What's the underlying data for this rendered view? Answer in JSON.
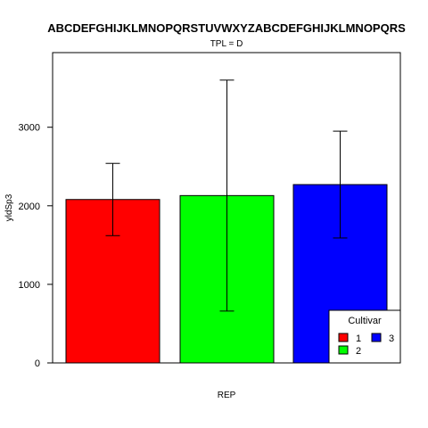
{
  "chart_data": {
    "type": "bar",
    "title": "ABCDEFGHIJKLMNOPQRSTUVWXYZABCDEFGHIJKLMNOPQRS",
    "subtitle": "TPL = D",
    "xlabel": "REP",
    "ylabel": "yldSp3",
    "ylim": [
      0,
      3950
    ],
    "yticks": [
      0,
      1000,
      2000,
      3000
    ],
    "grid": false,
    "categories": [
      "1",
      "2",
      "3"
    ],
    "values": [
      2080,
      2130,
      2270
    ],
    "error_low": [
      1620,
      660,
      1590
    ],
    "error_high": [
      2540,
      3600,
      2950
    ],
    "colors": [
      "#ff0000",
      "#00ff00",
      "#0000ff"
    ],
    "legend": {
      "title": "Cultivar",
      "placement": "bottom-right",
      "entries": [
        "1",
        "2",
        "3"
      ]
    }
  }
}
